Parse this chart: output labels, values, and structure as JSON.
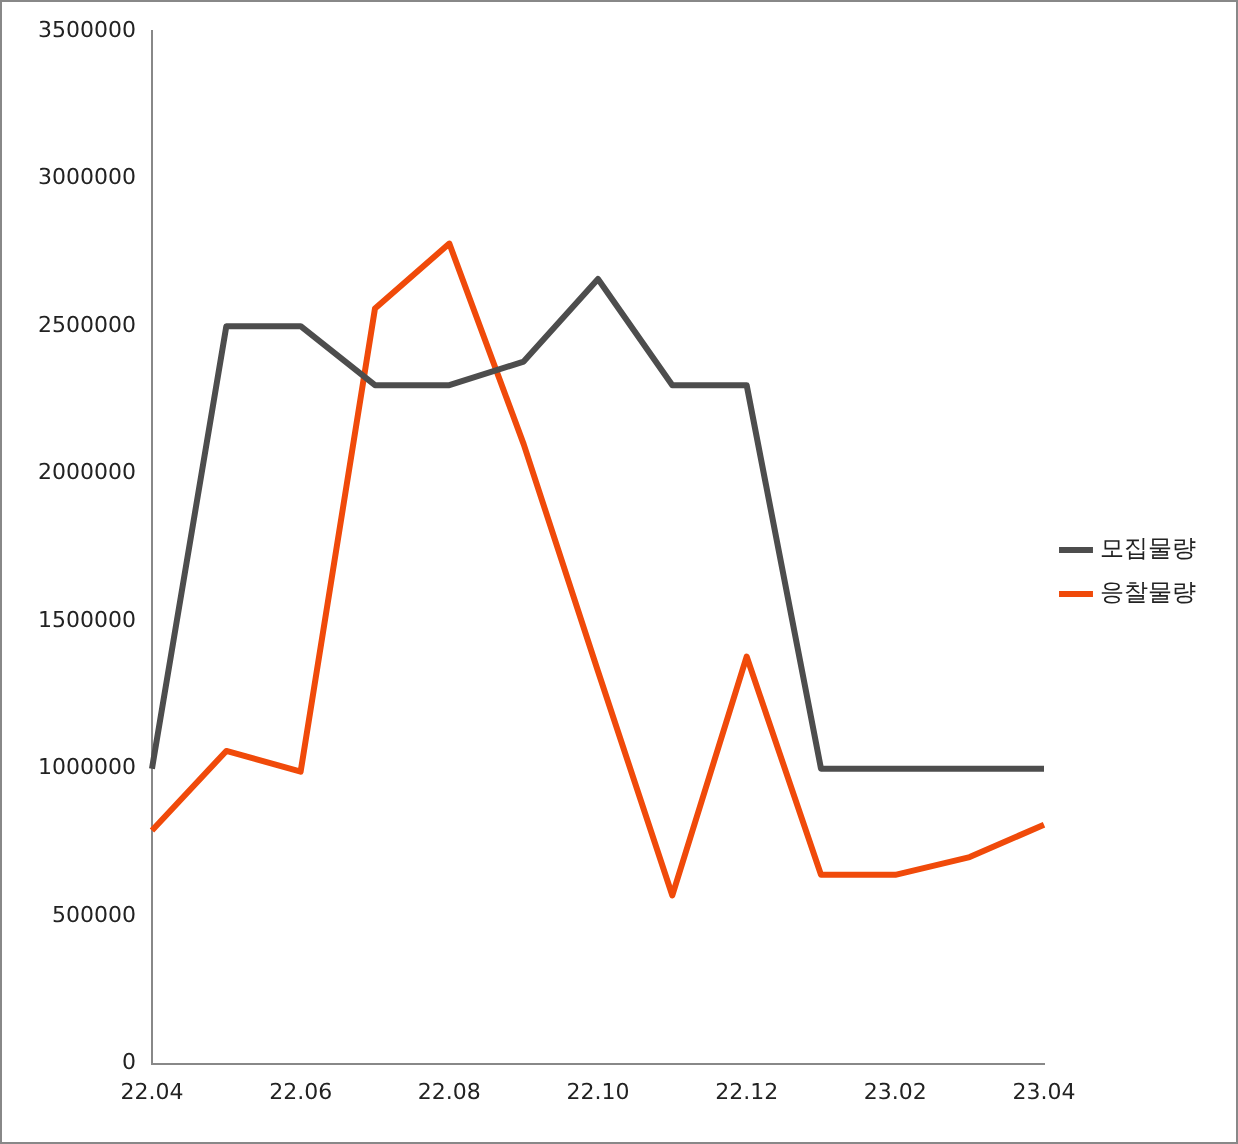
{
  "chart_data": {
    "type": "line",
    "categories": [
      "22.04",
      null,
      "22.06",
      null,
      "22.08",
      null,
      "22.10",
      null,
      "22.12",
      null,
      "23.02",
      null,
      "23.04"
    ],
    "series": [
      {
        "name": "모집물량",
        "color": "#4d4d4d",
        "values": [
          1000000,
          2500000,
          2500000,
          2300000,
          2300000,
          2380000,
          2660000,
          2300000,
          2300000,
          1000000,
          1000000,
          1000000,
          1000000
        ]
      },
      {
        "name": "응찰물량",
        "color": "#f04a0a",
        "values": [
          790000,
          1060000,
          990000,
          2560000,
          2780000,
          2100000,
          1330000,
          570000,
          1380000,
          640000,
          640000,
          700000,
          810000
        ]
      }
    ],
    "ylim": [
      0,
      3500000
    ],
    "yticks": [
      0,
      500000,
      1000000,
      1500000,
      2000000,
      2500000,
      3000000,
      3500000
    ],
    "grid": false,
    "legend": "right",
    "marker": "none",
    "line_style": "solid"
  }
}
